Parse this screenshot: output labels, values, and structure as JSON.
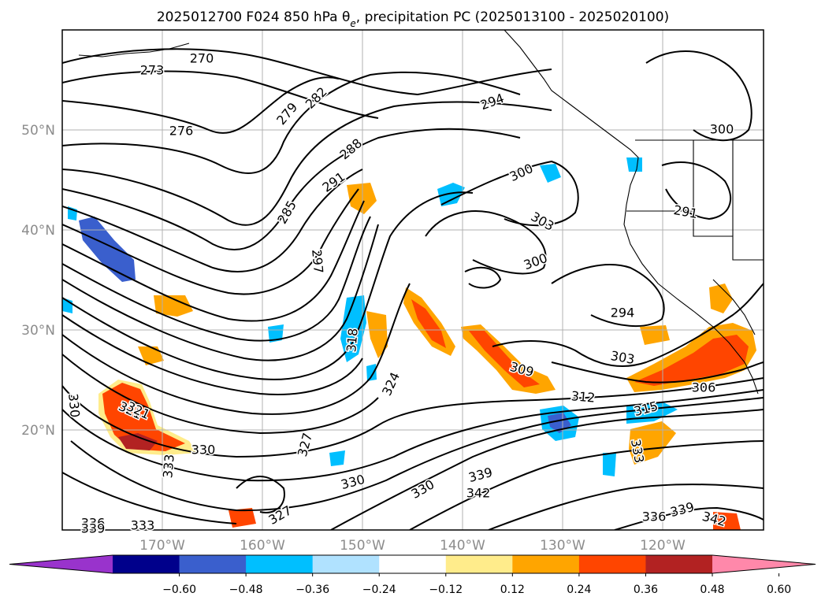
{
  "title": "2025012700 F024 850 hPa θe, precipitation PC (2025013100 - 2025020100)",
  "axes": {
    "lon_labels": [
      "170°W",
      "160°W",
      "150°W",
      "140°W",
      "130°W",
      "120°W"
    ],
    "lat_labels": [
      "50°N",
      "40°N",
      "30°N",
      "20°N"
    ],
    "lon_values": [
      -170,
      -160,
      -150,
      -140,
      -130,
      -120
    ],
    "lat_values": [
      50,
      40,
      30,
      20
    ],
    "lon_range": [
      -180,
      -110
    ],
    "lat_range": [
      10,
      60
    ],
    "grid": true
  },
  "contour_labels": [
    "270",
    "273",
    "276",
    "279",
    "282",
    "285",
    "288",
    "291",
    "294",
    "297",
    "300",
    "300",
    "300",
    "303",
    "303",
    "291",
    "294",
    "306",
    "309",
    "312",
    "315",
    "318",
    "321",
    "321",
    "324",
    "327",
    "327",
    "330",
    "330",
    "330",
    "330",
    "333",
    "333",
    "333",
    "336",
    "336",
    "339",
    "339",
    "339",
    "342",
    "342"
  ],
  "colorbar": {
    "ticks": [
      "−0.60",
      "−0.48",
      "−0.36",
      "−0.24",
      "−0.12",
      "0.12",
      "0.24",
      "0.36",
      "0.48",
      "0.60"
    ],
    "colors": [
      "#9933cc",
      "#00008b",
      "#3a5fcd",
      "#00bfff",
      "#b0e2ff",
      "#ffffff",
      "#ffec8b",
      "#ffa500",
      "#ff4500",
      "#b22222",
      "#ff88aa"
    ],
    "extend": "both"
  },
  "chart_data": {
    "type": "map-contour",
    "field": "850 hPa θe (K) contours with precipitation PC shading",
    "contour_interval": 3,
    "contour_levels": [
      270,
      273,
      276,
      279,
      282,
      285,
      288,
      291,
      294,
      297,
      300,
      303,
      306,
      309,
      312,
      315,
      318,
      321,
      324,
      327,
      330,
      333,
      336,
      339,
      342
    ],
    "shading_levels": [
      -0.6,
      -0.48,
      -0.36,
      -0.24,
      -0.12,
      0.12,
      0.24,
      0.36,
      0.48,
      0.6
    ]
  }
}
